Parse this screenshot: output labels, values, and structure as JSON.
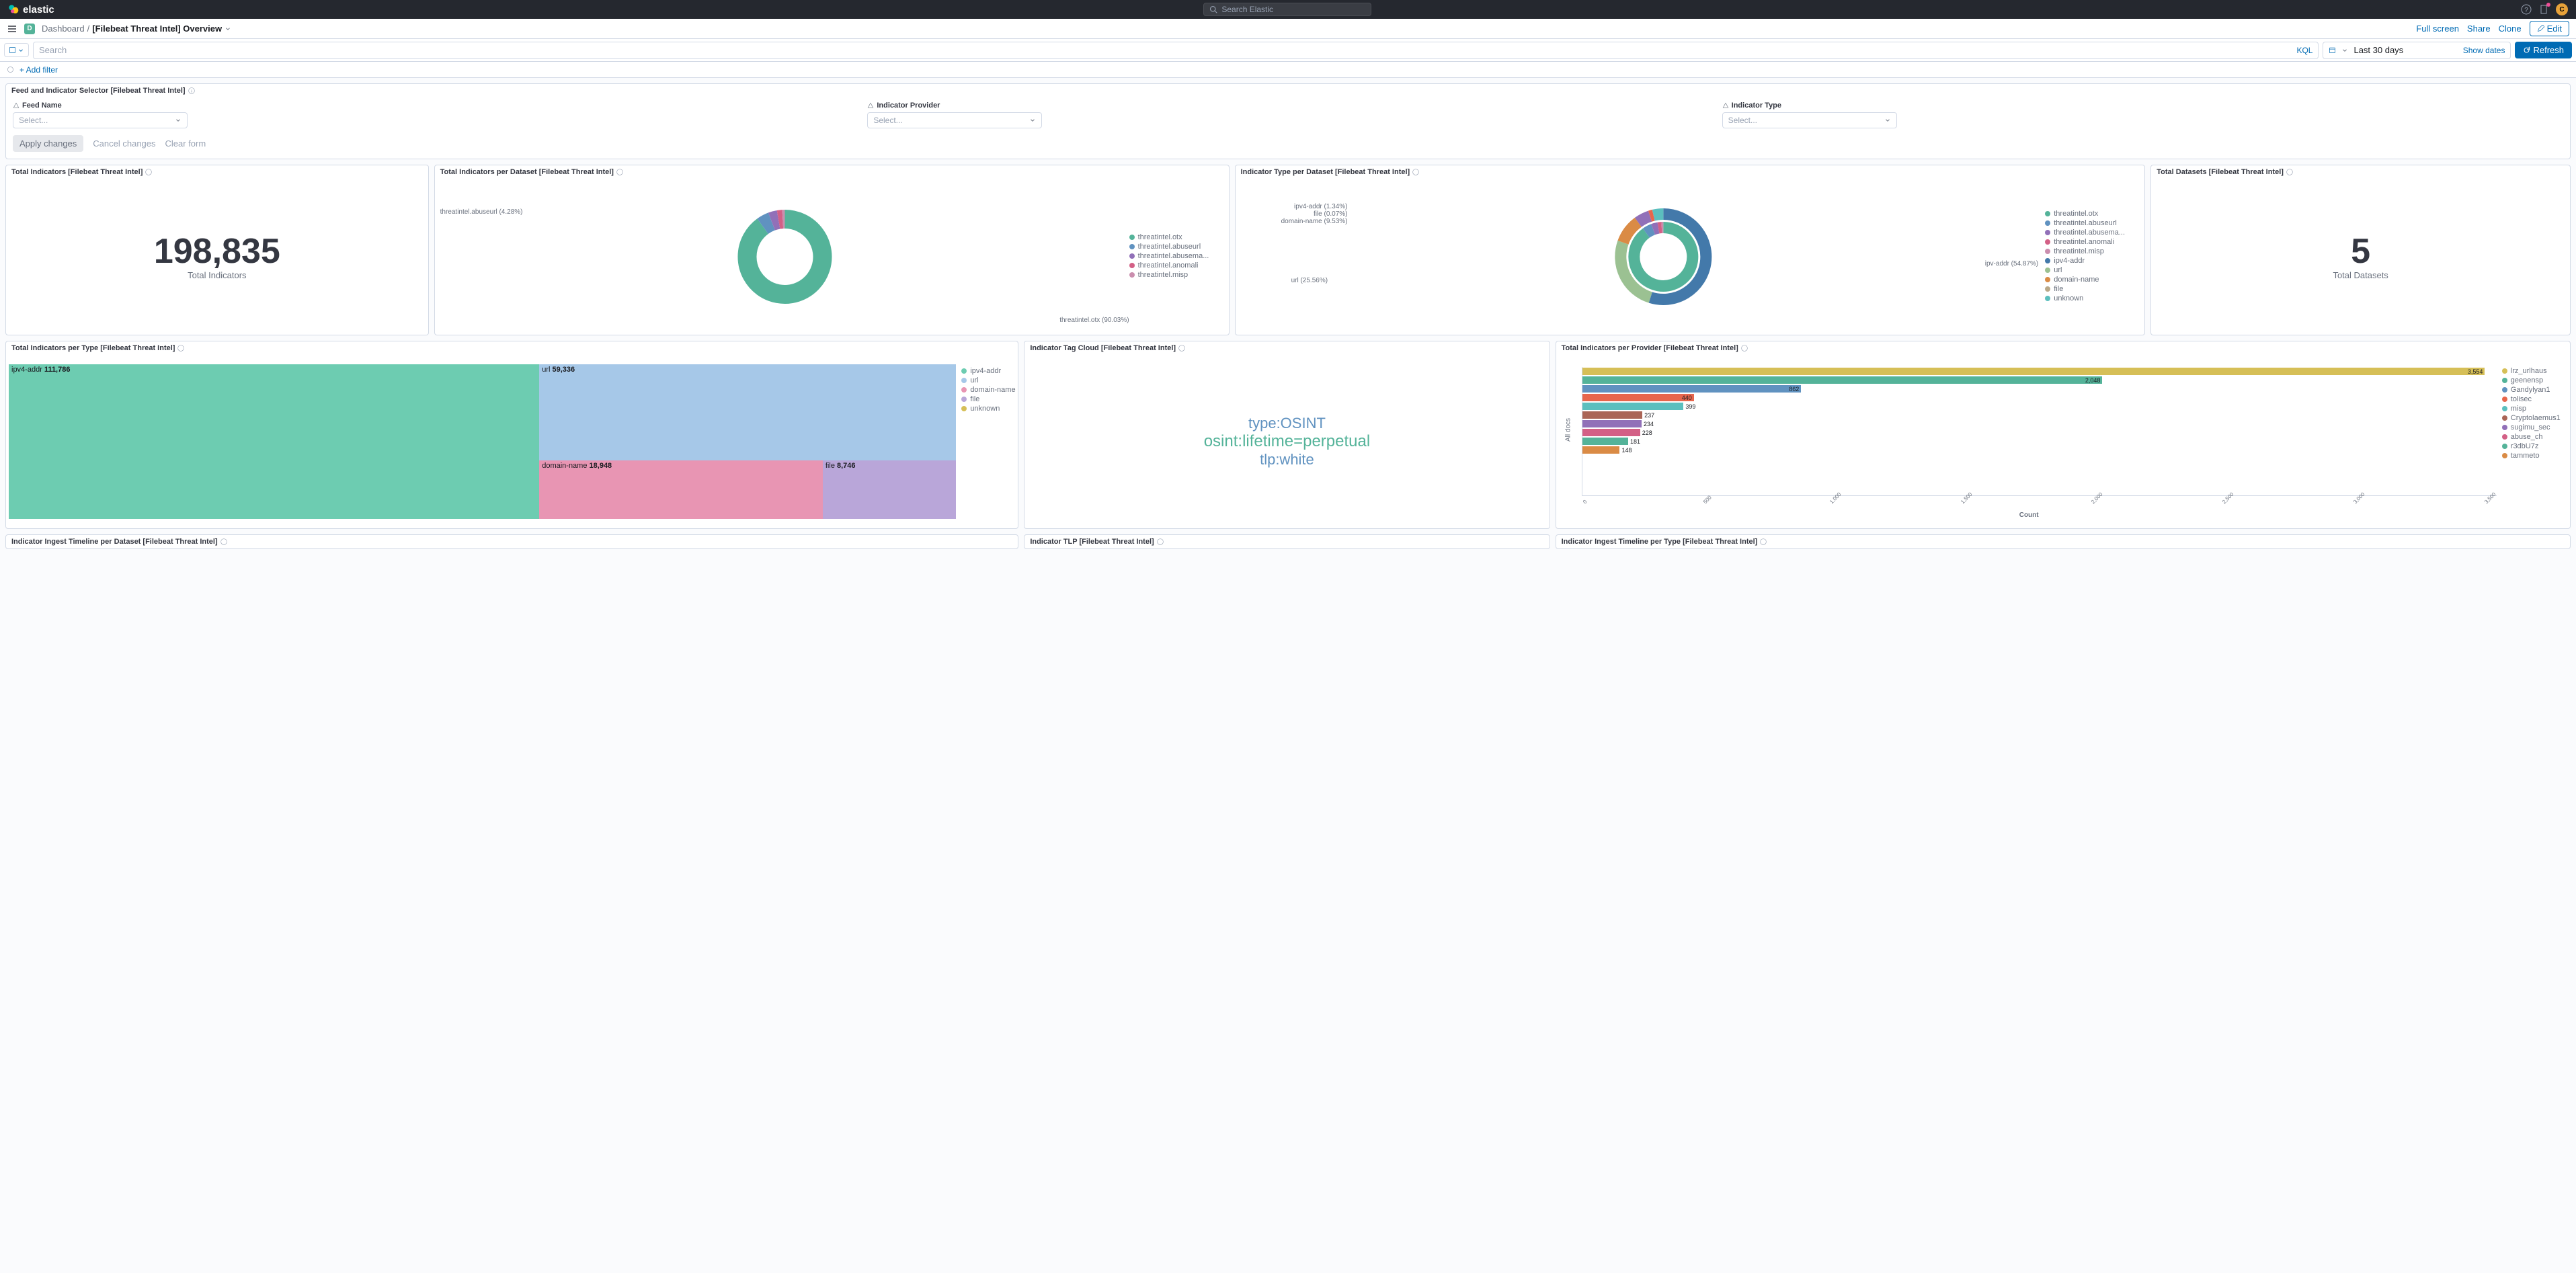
{
  "header": {
    "brand": "elastic",
    "search_placeholder": "Search Elastic",
    "avatar_initial": "C"
  },
  "subheader": {
    "space_initial": "D",
    "breadcrumb_root": "Dashboard",
    "breadcrumb_current": "[Filebeat Threat Intel] Overview",
    "full_screen": "Full screen",
    "share": "Share",
    "clone": "Clone",
    "edit": "Edit"
  },
  "querybar": {
    "search_placeholder": "Search",
    "kql": "KQL",
    "date_range": "Last 30 days",
    "show_dates": "Show dates",
    "refresh": "Refresh",
    "add_filter": "+ Add filter"
  },
  "selector_panel": {
    "title": "Feed and Indicator Selector [Filebeat Threat Intel]",
    "feed_name_label": "Feed Name",
    "indicator_provider_label": "Indicator Provider",
    "indicator_type_label": "Indicator Type",
    "select_placeholder": "Select...",
    "apply": "Apply changes",
    "cancel": "Cancel changes",
    "clear": "Clear form"
  },
  "panels": {
    "total_indicators": {
      "title": "Total Indicators [Filebeat Threat Intel]",
      "value": "198,835",
      "label": "Total Indicators"
    },
    "per_dataset": {
      "title": "Total Indicators per Dataset [Filebeat Threat Intel]",
      "callout_top": "threatintel.abuseurl (4.28%)",
      "callout_bottom": "threatintel.otx (90.03%)",
      "legend": [
        {
          "label": "threatintel.otx",
          "color": "#54b399"
        },
        {
          "label": "threatintel.abuseurl",
          "color": "#6092c0"
        },
        {
          "label": "threatintel.abusema...",
          "color": "#9170b8"
        },
        {
          "label": "threatintel.anomali",
          "color": "#d36086"
        },
        {
          "label": "threatintel.misp",
          "color": "#ca8eae"
        }
      ],
      "donut": {
        "segments": [
          {
            "color": "#54b399",
            "frac": 0.9003
          },
          {
            "color": "#6092c0",
            "frac": 0.0428
          },
          {
            "color": "#9170b8",
            "frac": 0.03
          },
          {
            "color": "#d36086",
            "frac": 0.018
          },
          {
            "color": "#ca8eae",
            "frac": 0.0089
          }
        ]
      }
    },
    "type_per_dataset": {
      "title": "Indicator Type per Dataset [Filebeat Threat Intel]",
      "callouts": {
        "l1": "ipv4-addr (1.34%)",
        "l2": "file (0.07%)",
        "l3": "domain-name (9.53%)",
        "l4": "url (25.56%)",
        "r1": "ipv-addr (54.87%)"
      },
      "legend": [
        {
          "label": "threatintel.otx",
          "color": "#54b399"
        },
        {
          "label": "threatintel.abuseurl",
          "color": "#6092c0"
        },
        {
          "label": "threatintel.abusema...",
          "color": "#9170b8"
        },
        {
          "label": "threatintel.anomali",
          "color": "#d36086"
        },
        {
          "label": "threatintel.misp",
          "color": "#ca8eae"
        },
        {
          "label": "ipv4-addr",
          "color": "#4379aa"
        },
        {
          "label": "url",
          "color": "#9bc192"
        },
        {
          "label": "domain-name",
          "color": "#da8b45"
        },
        {
          "label": "file",
          "color": "#b9a888"
        },
        {
          "label": "unknown",
          "color": "#5bbfbe"
        }
      ]
    },
    "total_datasets": {
      "title": "Total Datasets [Filebeat Threat Intel]",
      "value": "5",
      "label": "Total Datasets"
    },
    "per_type": {
      "title": "Total Indicators per Type [Filebeat Threat Intel]",
      "treemap": {
        "ipv4": {
          "label": "ipv4-addr",
          "value": "111,786"
        },
        "url": {
          "label": "url",
          "value": "59,336"
        },
        "domain": {
          "label": "domain-name",
          "value": "18,948"
        },
        "file": {
          "label": "file",
          "value": "8,746"
        }
      },
      "legend": [
        {
          "label": "ipv4-addr",
          "color": "#6dccb1"
        },
        {
          "label": "url",
          "color": "#a6c8e8"
        },
        {
          "label": "domain-name",
          "color": "#e895b3"
        },
        {
          "label": "file",
          "color": "#b9a6d9"
        },
        {
          "label": "unknown",
          "color": "#d6bf57"
        }
      ]
    },
    "tag_cloud": {
      "title": "Indicator Tag Cloud [Filebeat Threat Intel]",
      "tags": {
        "t1": "type:OSINT",
        "t2": "osint:lifetime=perpetual",
        "t3": "tlp:white"
      }
    },
    "per_provider": {
      "title": "Total Indicators per Provider [Filebeat Threat Intel]",
      "x_label": "Count",
      "y_label": "All docs",
      "bars": [
        {
          "value": 3554,
          "color": "#d6bf57"
        },
        {
          "value": 2048,
          "color": "#54b399"
        },
        {
          "value": 862,
          "color": "#6092c0"
        },
        {
          "value": 440,
          "color": "#e7664c"
        },
        {
          "value": 399,
          "color": "#5bbfbe"
        },
        {
          "value": 237,
          "color": "#aa6556"
        },
        {
          "value": 234,
          "color": "#9170b8"
        },
        {
          "value": 228,
          "color": "#d36086"
        },
        {
          "value": 181,
          "color": "#54b399"
        },
        {
          "value": 148,
          "color": "#da8b45"
        }
      ],
      "x_ticks": [
        "0",
        "500",
        "1,000",
        "1,500",
        "2,000",
        "2,500",
        "3,000",
        "3,500"
      ],
      "legend": [
        {
          "label": "lrz_urlhaus",
          "color": "#d6bf57"
        },
        {
          "label": "geenensp",
          "color": "#54b399"
        },
        {
          "label": "Gandylyan1",
          "color": "#6092c0"
        },
        {
          "label": "tolisec",
          "color": "#e7664c"
        },
        {
          "label": "misp",
          "color": "#5bbfbe"
        },
        {
          "label": "Cryptolaemus1",
          "color": "#aa6556"
        },
        {
          "label": "sugimu_sec",
          "color": "#9170b8"
        },
        {
          "label": "abuse_ch",
          "color": "#d36086"
        },
        {
          "label": "r3dbU7z",
          "color": "#54b399"
        },
        {
          "label": "tammeto",
          "color": "#da8b45"
        }
      ]
    },
    "row4": {
      "p1": "Indicator Ingest Timeline per Dataset [Filebeat Threat Intel]",
      "p2": "Indicator TLP [Filebeat Threat Intel]",
      "p3": "Indicator Ingest Timeline per Type [Filebeat Threat Intel]"
    }
  }
}
